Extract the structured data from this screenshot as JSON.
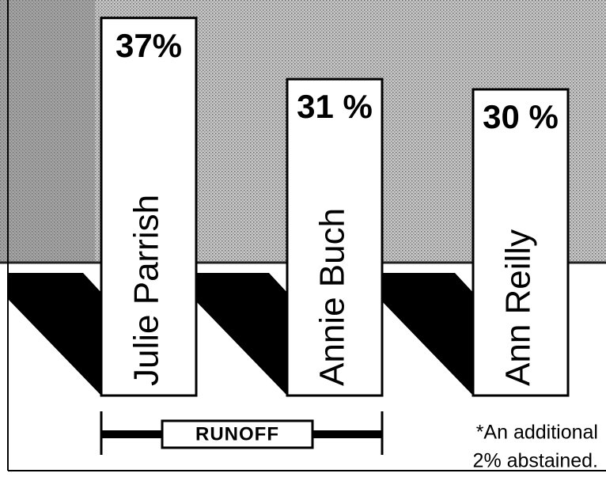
{
  "chart_data": {
    "type": "bar",
    "categories": [
      "Julie Parrish",
      "Annie Buch",
      "Ann Reilly"
    ],
    "values": [
      37,
      31,
      30
    ],
    "value_labels": [
      "37%",
      "31 %",
      "30 %"
    ],
    "color": "#ffffff",
    "annotations": [
      "RUNOFF",
      "*An additional",
      "2% abstained."
    ]
  }
}
